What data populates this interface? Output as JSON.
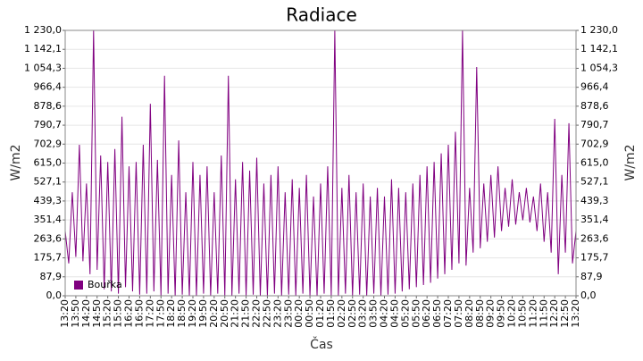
{
  "chart_data": {
    "type": "line",
    "title": "Radiace",
    "x_label": "Čas",
    "y_label": "W/m2",
    "categories": [
      "13:20",
      null,
      null,
      "13:50",
      null,
      null,
      "14:20",
      null,
      null,
      "14:50",
      null,
      null,
      "15:20",
      null,
      null,
      "15:50",
      null,
      null,
      "16:20",
      null,
      null,
      "16:50",
      null,
      null,
      "17:20",
      null,
      null,
      "17:50",
      null,
      null,
      "18:20",
      null,
      null,
      "18:50",
      null,
      null,
      "19:20",
      null,
      null,
      "19:50",
      null,
      null,
      "20:20",
      null,
      null,
      "20:50",
      null,
      null,
      "21:20",
      null,
      null,
      "21:50",
      null,
      null,
      "22:20",
      null,
      null,
      "22:50",
      null,
      null,
      "23:20",
      null,
      null,
      "23:50",
      null,
      null,
      "00:20",
      null,
      null,
      "00:50",
      null,
      null,
      "01:20",
      null,
      null,
      "01:50",
      null,
      null,
      "02:20",
      null,
      null,
      "02:50",
      null,
      null,
      "03:20",
      null,
      null,
      "03:50",
      null,
      null,
      "04:20",
      null,
      null,
      "04:50",
      null,
      null,
      "05:20",
      null,
      null,
      "05:50",
      null,
      null,
      "06:20",
      null,
      null,
      "06:50",
      null,
      null,
      "07:20",
      null,
      null,
      "07:50",
      null,
      null,
      "08:20",
      null,
      null,
      "08:50",
      null,
      null,
      "09:20",
      null,
      null,
      "09:50",
      null,
      null,
      "10:20",
      null,
      null,
      "10:50",
      null,
      null,
      "11:20",
      null,
      null,
      "11:50",
      null,
      null,
      "12:20",
      null,
      null,
      "12:50",
      null,
      null,
      "13:20"
    ],
    "series": [
      {
        "name": "Bouřka",
        "color": "#800080",
        "values": [
          300,
          150,
          480,
          180,
          700,
          160,
          520,
          100,
          1230,
          120,
          650,
          30,
          620,
          20,
          680,
          10,
          830,
          40,
          600,
          20,
          620,
          5,
          700,
          10,
          890,
          20,
          630,
          0,
          1020,
          10,
          560,
          0,
          720,
          5,
          480,
          0,
          620,
          0,
          560,
          10,
          600,
          0,
          480,
          10,
          650,
          0,
          1020,
          0,
          540,
          10,
          620,
          0,
          580,
          5,
          640,
          0,
          520,
          0,
          560,
          10,
          600,
          0,
          480,
          5,
          540,
          0,
          500,
          10,
          560,
          0,
          460,
          0,
          520,
          10,
          600,
          0,
          1230,
          0,
          500,
          10,
          560,
          0,
          480,
          5,
          520,
          0,
          460,
          10,
          500,
          0,
          460,
          5,
          540,
          10,
          500,
          20,
          480,
          30,
          520,
          40,
          560,
          50,
          600,
          60,
          620,
          80,
          660,
          100,
          700,
          120,
          760,
          150,
          1230,
          140,
          500,
          200,
          1060,
          220,
          520,
          250,
          560,
          270,
          600,
          300,
          500,
          320,
          540,
          330,
          480,
          350,
          500,
          340,
          460,
          300,
          520,
          250,
          480,
          200,
          820,
          100,
          560,
          200,
          800,
          150,
          300
        ]
      }
    ],
    "ylim": [
      0,
      1230
    ],
    "yticks": [
      {
        "value": 0,
        "label": "0,0"
      },
      {
        "value": 87.9,
        "label": "87,9"
      },
      {
        "value": 175.7,
        "label": "175,7"
      },
      {
        "value": 263.6,
        "label": "263,6"
      },
      {
        "value": 351.4,
        "label": "351,4"
      },
      {
        "value": 439.3,
        "label": "439,3"
      },
      {
        "value": 527.1,
        "label": "527,1"
      },
      {
        "value": 615,
        "label": "615,0"
      },
      {
        "value": 702.9,
        "label": "702,9"
      },
      {
        "value": 790.7,
        "label": "790,7"
      },
      {
        "value": 878.6,
        "label": "878,6"
      },
      {
        "value": 966.4,
        "label": "966,4"
      },
      {
        "value": 1054.3,
        "label": "1 054,3"
      },
      {
        "value": 1142.1,
        "label": "1 142,1"
      },
      {
        "value": 1230,
        "label": "1 230,0"
      }
    ],
    "grid": true,
    "legend": "lower left"
  }
}
